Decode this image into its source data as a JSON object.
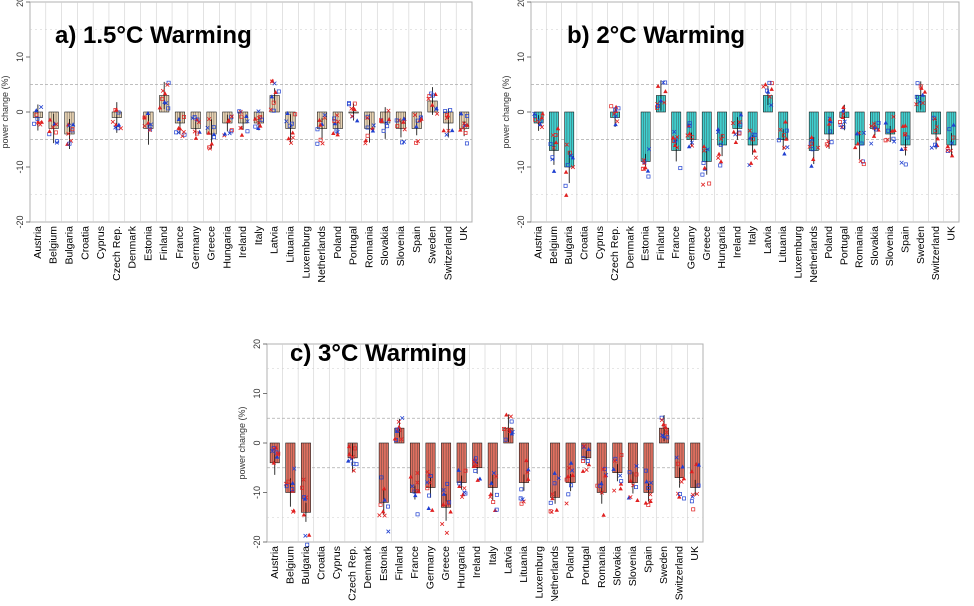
{
  "chart_data": [
    {
      "type": "bar",
      "title": "a) 1.5°C Warming",
      "ylabel": "power change (%)",
      "ylim": [
        -20,
        20
      ],
      "yticks": [
        -20,
        -10,
        0,
        10,
        20
      ],
      "bar_color": "#e8d3b3",
      "categories": [
        "Austria",
        "Belgium",
        "Bulgaria",
        "Croatia",
        "Cyprus",
        "Czech Rep.",
        "Denmark",
        "Estonia",
        "Finland",
        "France",
        "Germany",
        "Greece",
        "Hungaria",
        "Ireland",
        "Italy",
        "Latvia",
        "Lituania",
        "Luxemburg",
        "Netherlands",
        "Poland",
        "Portugal",
        "Romania",
        "Slovakia",
        "Slovenia",
        "Spain",
        "Sweden",
        "Switzerland",
        "UK"
      ],
      "values": [
        -1,
        -3,
        -4,
        null,
        null,
        -1,
        null,
        -3,
        3,
        -2,
        -3,
        -4,
        -2,
        -2,
        -2,
        3,
        -3,
        null,
        -3,
        -3,
        0,
        -3,
        -2,
        -3,
        -3,
        2,
        -2,
        -3
      ]
    },
    {
      "type": "bar",
      "title": "b) 2°C Warming",
      "ylabel": "power change (%)",
      "ylim": [
        -20,
        20
      ],
      "yticks": [
        -20,
        -10,
        0,
        10,
        20
      ],
      "bar_color": "#40d0d0",
      "categories": [
        "Austria",
        "Belgium",
        "Bulgaria",
        "Croatia",
        "Cyprus",
        "Czech Rep.",
        "Denmark",
        "Estonia",
        "Finland",
        "France",
        "Germany",
        "Greece",
        "Hungaria",
        "Ireland",
        "Italy",
        "Latvia",
        "Lituania",
        "Luxemburg",
        "Netherlands",
        "Poland",
        "Portugal",
        "Romania",
        "Slovakia",
        "Slovenia",
        "Spain",
        "Sweden",
        "Switzerland",
        "UK"
      ],
      "values": [
        -2,
        -7,
        -10,
        null,
        null,
        -1,
        null,
        -9,
        3,
        -7,
        -5,
        -9,
        -6,
        -3,
        -6,
        3,
        -5,
        null,
        -7,
        -4,
        -1,
        -6,
        -3,
        -4,
        -6,
        3,
        -4,
        -6
      ]
    },
    {
      "type": "bar",
      "title": "c) 3°C Warming",
      "ylabel": "power change (%)",
      "ylim": [
        -20,
        20
      ],
      "yticks": [
        -20,
        -10,
        0,
        10,
        20
      ],
      "bar_color": "#e07060",
      "categories": [
        "Austria",
        "Belgium",
        "Bulgaria",
        "Croatia",
        "Cyprus",
        "Czech Rep.",
        "Denmark",
        "Estonia",
        "Finland",
        "France",
        "Germany",
        "Greece",
        "Hungaria",
        "Ireland",
        "Italy",
        "Latvia",
        "Lituania",
        "Luxemburg",
        "Netherlands",
        "Poland",
        "Portugal",
        "Romania",
        "Slovakia",
        "Slovenia",
        "Spain",
        "Sweden",
        "Switzerland",
        "UK"
      ],
      "values": [
        -4,
        -10,
        -14,
        null,
        null,
        -3,
        null,
        -12,
        3,
        -10,
        -9,
        -13,
        -8,
        -5,
        -9,
        3,
        -8,
        null,
        -11,
        -8,
        -3,
        -10,
        -6,
        -8,
        -10,
        3,
        -7,
        -9
      ]
    }
  ]
}
